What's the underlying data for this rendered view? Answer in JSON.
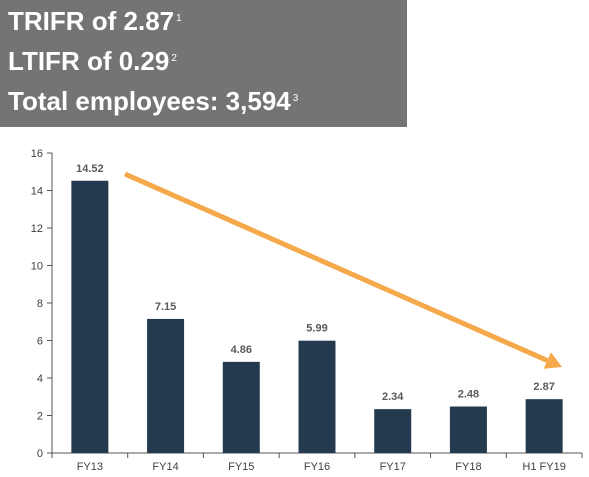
{
  "banner": {
    "line1": {
      "text": "TRIFR of 2.87",
      "sup": "1"
    },
    "line2": {
      "text": "LTIFR of 0.29",
      "sup": "2"
    },
    "line3": {
      "text": "Total employees: 3,594",
      "sup": "3"
    }
  },
  "colors": {
    "bar": "#233a4f",
    "arrow": "#f5a94a",
    "banner_bg": "#747474",
    "axis": "#555555"
  },
  "chart_data": {
    "type": "bar",
    "title": "",
    "xlabel": "",
    "ylabel": "",
    "categories": [
      "FY13",
      "FY14",
      "FY15",
      "FY16",
      "FY17",
      "FY18",
      "H1 FY19"
    ],
    "values": [
      14.52,
      7.15,
      4.86,
      5.99,
      2.34,
      2.48,
      2.87
    ],
    "data_labels": [
      "14.52",
      "7.15",
      "4.86",
      "5.99",
      "2.34",
      "2.48",
      "2.87"
    ],
    "ylim": [
      0,
      16
    ],
    "yticks": [
      0,
      2,
      4,
      6,
      8,
      10,
      12,
      14,
      16
    ],
    "grid": false,
    "legend": "none",
    "annotation": "downward trend arrow"
  }
}
